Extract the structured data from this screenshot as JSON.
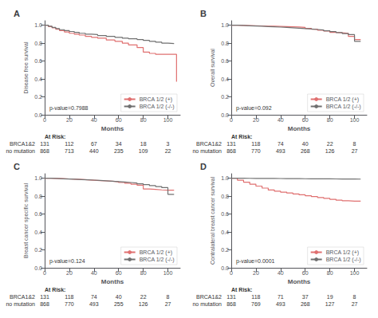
{
  "chart_data": [
    {
      "type": "step",
      "title": "A",
      "xlabel": "Months",
      "ylabel": "Disease free survival",
      "annotations": [
        "p-value=0.7988"
      ],
      "xlim": [
        0,
        110
      ],
      "ylim": [
        0.0,
        1.05
      ],
      "xticks": [
        0,
        20,
        40,
        60,
        80,
        100
      ],
      "yticks": [
        {
          "value": 0.0,
          "label": "0.0"
        },
        0.2,
        0.4,
        0.6,
        0.8,
        {
          "value": 1.0,
          "label": "1.0"
        }
      ],
      "grid": false,
      "legend": "lower right",
      "series": [
        {
          "name": "BRCA 1/2 (+)",
          "color": "#e07070",
          "x": [
            0,
            3,
            6,
            9,
            12,
            16,
            20,
            24,
            28,
            33,
            38,
            43,
            50,
            57,
            63,
            68,
            75,
            80,
            85,
            90,
            95,
            100,
            105,
            107
          ],
          "values": [
            1.0,
            0.985,
            0.97,
            0.955,
            0.94,
            0.925,
            0.91,
            0.9,
            0.89,
            0.875,
            0.865,
            0.855,
            0.835,
            0.82,
            0.8,
            0.78,
            0.75,
            0.7,
            0.685,
            0.675,
            0.675,
            0.675,
            0.675,
            0.37
          ]
        },
        {
          "name": "BRCA 1/2 (-/-)",
          "color": "#707070",
          "x": [
            0,
            3,
            6,
            9,
            12,
            16,
            20,
            24,
            28,
            33,
            38,
            43,
            50,
            57,
            63,
            68,
            75,
            80,
            85,
            90,
            95,
            100,
            105
          ],
          "values": [
            1.0,
            0.988,
            0.975,
            0.963,
            0.95,
            0.94,
            0.93,
            0.92,
            0.91,
            0.9,
            0.895,
            0.885,
            0.875,
            0.865,
            0.855,
            0.848,
            0.84,
            0.83,
            0.82,
            0.81,
            0.8,
            0.795,
            0.79
          ]
        }
      ],
      "at_risk": {
        "title": "At Risk:",
        "x": [
          0,
          20,
          40,
          60,
          80,
          100
        ],
        "rows": [
          {
            "name": "BRCA1&2",
            "values": [
              131,
              112,
              67,
              34,
              18,
              3
            ]
          },
          {
            "name": "no mutation",
            "values": [
              868,
              713,
              440,
              235,
              109,
              22
            ]
          }
        ]
      }
    },
    {
      "type": "step",
      "title": "B",
      "xlabel": "Months",
      "ylabel": "Overall survival",
      "annotations": [
        "p-value=0.092"
      ],
      "xlim": [
        0,
        110
      ],
      "ylim": [
        0.0,
        1.05
      ],
      "xticks": [
        0,
        20,
        40,
        60,
        80,
        100
      ],
      "yticks": [
        {
          "value": 0.0,
          "label": "0.0"
        },
        0.2,
        0.4,
        0.6,
        0.8,
        {
          "value": 1.0,
          "label": "1.0"
        }
      ],
      "grid": false,
      "legend": "lower right",
      "series": [
        {
          "name": "BRCA 1/2 (+)",
          "color": "#e07070",
          "x": [
            0,
            5,
            10,
            15,
            20,
            25,
            30,
            35,
            40,
            45,
            50,
            55,
            60,
            65,
            70,
            75,
            80,
            85,
            90,
            95,
            100,
            105
          ],
          "values": [
            1.0,
            0.998,
            0.996,
            0.994,
            0.992,
            0.99,
            0.988,
            0.986,
            0.984,
            0.982,
            0.98,
            0.975,
            0.965,
            0.955,
            0.945,
            0.935,
            0.92,
            0.915,
            0.91,
            0.875,
            0.84,
            0.84
          ]
        },
        {
          "name": "BRCA 1/2 (-/-)",
          "color": "#707070",
          "x": [
            0,
            5,
            10,
            15,
            20,
            25,
            30,
            35,
            40,
            45,
            50,
            55,
            60,
            65,
            70,
            75,
            80,
            85,
            90,
            95,
            100,
            105
          ],
          "values": [
            1.0,
            0.997,
            0.994,
            0.991,
            0.988,
            0.985,
            0.982,
            0.979,
            0.975,
            0.971,
            0.967,
            0.963,
            0.958,
            0.952,
            0.946,
            0.938,
            0.928,
            0.918,
            0.907,
            0.895,
            0.82,
            0.82
          ]
        }
      ],
      "at_risk": {
        "title": "At Risk:",
        "x": [
          0,
          20,
          40,
          60,
          80,
          100
        ],
        "rows": [
          {
            "name": "BRCA1&2",
            "values": [
              131,
              118,
              74,
              40,
              22,
              8
            ]
          },
          {
            "name": "no mutation",
            "values": [
              868,
              770,
              493,
              268,
              126,
              27
            ]
          }
        ]
      }
    },
    {
      "type": "step",
      "title": "C",
      "xlabel": "Months",
      "ylabel": "Breast cancer specific survival",
      "annotations": [
        "p-value=0.124"
      ],
      "xlim": [
        0,
        110
      ],
      "ylim": [
        0.0,
        1.05
      ],
      "xticks": [
        0,
        20,
        40,
        60,
        80,
        100
      ],
      "yticks": [
        {
          "value": 0.0,
          "label": "0.0"
        },
        0.2,
        0.4,
        0.6,
        0.8,
        {
          "value": 1.0,
          "label": "1.0"
        }
      ],
      "grid": false,
      "legend": "lower right",
      "series": [
        {
          "name": "BRCA 1/2 (+)",
          "color": "#e07070",
          "x": [
            0,
            5,
            10,
            15,
            20,
            25,
            30,
            35,
            40,
            45,
            50,
            55,
            60,
            65,
            70,
            75,
            80,
            85,
            90,
            95,
            100,
            105
          ],
          "values": [
            1.0,
            0.998,
            0.995,
            0.992,
            0.989,
            0.986,
            0.982,
            0.978,
            0.974,
            0.97,
            0.966,
            0.96,
            0.952,
            0.944,
            0.934,
            0.922,
            0.88,
            0.875,
            0.87,
            0.866,
            0.866,
            0.866
          ]
        },
        {
          "name": "BRCA 1/2 (-/-)",
          "color": "#707070",
          "x": [
            0,
            5,
            10,
            15,
            20,
            25,
            30,
            35,
            40,
            45,
            50,
            55,
            60,
            65,
            70,
            75,
            80,
            85,
            90,
            95,
            100,
            105
          ],
          "values": [
            1.0,
            0.997,
            0.994,
            0.991,
            0.988,
            0.985,
            0.982,
            0.979,
            0.975,
            0.971,
            0.967,
            0.963,
            0.958,
            0.952,
            0.946,
            0.938,
            0.928,
            0.918,
            0.907,
            0.895,
            0.82,
            0.82
          ]
        }
      ],
      "at_risk": {
        "title": "At Risk:",
        "x": [
          0,
          20,
          40,
          60,
          80,
          100
        ],
        "rows": [
          {
            "name": "BRCA1&2",
            "values": [
              131,
              118,
              74,
              40,
              22,
              8
            ]
          },
          {
            "name": "no mutation",
            "values": [
              868,
              770,
              493,
              255,
              126,
              27
            ]
          }
        ]
      }
    },
    {
      "type": "step",
      "title": "D",
      "xlabel": "Months",
      "ylabel": "Contralateral breast cancer survival",
      "annotations": [
        "p-value=0.0001"
      ],
      "xlim": [
        0,
        110
      ],
      "ylim": [
        0.0,
        1.05
      ],
      "xticks": [
        0,
        20,
        40,
        60,
        80,
        100
      ],
      "yticks": [
        {
          "value": 0.0,
          "label": "0.0"
        },
        0.2,
        0.4,
        0.6,
        0.8,
        {
          "value": 1.0,
          "label": "1.0"
        }
      ],
      "grid": false,
      "legend": "lower right",
      "series": [
        {
          "name": "BRCA 1/2 (+)",
          "color": "#e07070",
          "x": [
            0,
            5,
            10,
            15,
            20,
            25,
            30,
            35,
            40,
            45,
            50,
            55,
            60,
            65,
            70,
            75,
            80,
            85,
            90,
            95,
            100,
            105
          ],
          "values": [
            1.0,
            0.978,
            0.956,
            0.934,
            0.912,
            0.89,
            0.868,
            0.855,
            0.845,
            0.835,
            0.825,
            0.815,
            0.805,
            0.795,
            0.785,
            0.775,
            0.765,
            0.755,
            0.748,
            0.745,
            0.745,
            0.745
          ]
        },
        {
          "name": "BRCA 1/2 (-/-)",
          "color": "#707070",
          "x": [
            0,
            5,
            10,
            15,
            20,
            25,
            30,
            35,
            40,
            45,
            50,
            55,
            60,
            65,
            70,
            75,
            80,
            85,
            90,
            95,
            100,
            105
          ],
          "values": [
            1.0,
            0.9995,
            0.999,
            0.9985,
            0.998,
            0.9975,
            0.997,
            0.9965,
            0.996,
            0.9955,
            0.995,
            0.9945,
            0.994,
            0.9935,
            0.993,
            0.9925,
            0.992,
            0.9915,
            0.991,
            0.9905,
            0.99,
            0.99
          ]
        }
      ],
      "at_risk": {
        "title": "At Risk:",
        "x": [
          0,
          20,
          40,
          60,
          80,
          100
        ],
        "rows": [
          {
            "name": "BRCA1&2",
            "values": [
              131,
              118,
              71,
              37,
              19,
              8
            ]
          },
          {
            "name": "no mutation",
            "values": [
              868,
              769,
              493,
              268,
              127,
              27
            ]
          }
        ]
      }
    }
  ]
}
